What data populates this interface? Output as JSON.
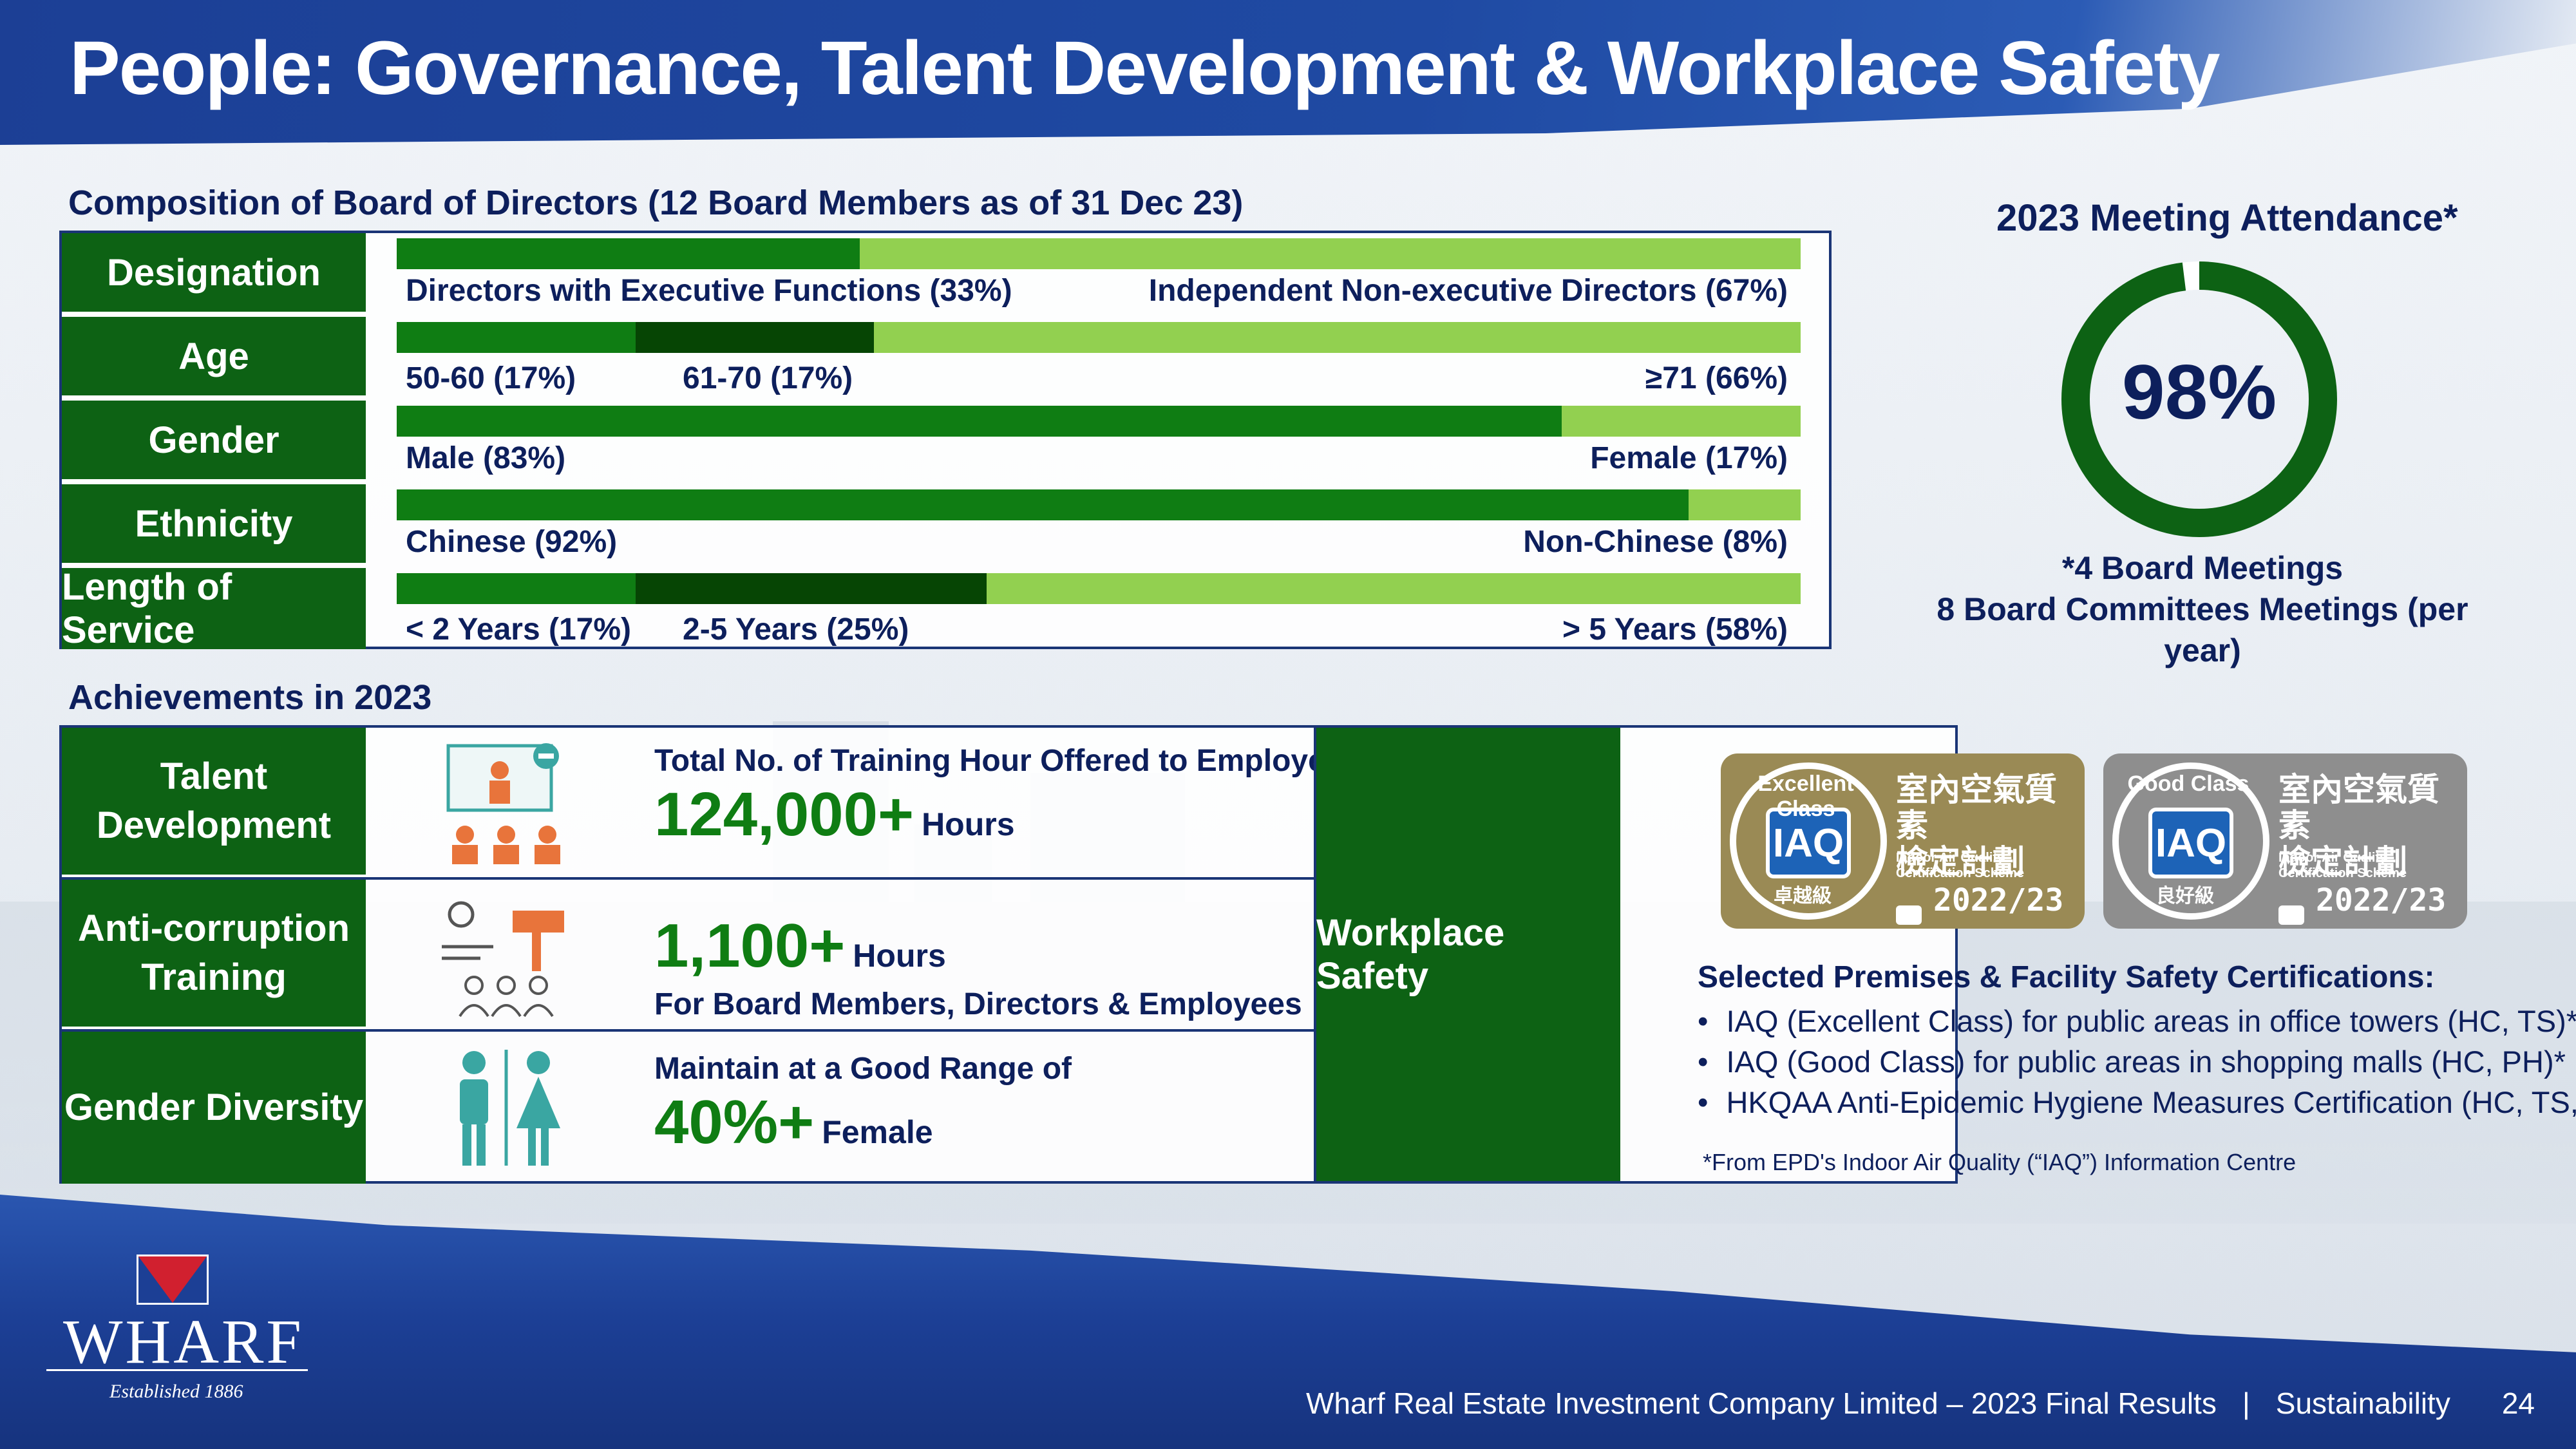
{
  "header": {
    "title": "People: Governance, Talent Development & Workplace Safety"
  },
  "board": {
    "title": "Composition of Board of Directors (12 Board Members as of 31 Dec 23)",
    "rows": [
      {
        "label": "Designation",
        "segments": [
          {
            "pct": 33,
            "label": "Directors with Executive Functions (33%)"
          },
          {
            "pct": 67,
            "label": "Independent Non-executive Directors (67%)"
          }
        ]
      },
      {
        "label": "Age",
        "segments": [
          {
            "pct": 17,
            "label": "50-60 (17%)"
          },
          {
            "pct": 17,
            "label": "61-70 (17%)"
          },
          {
            "pct": 66,
            "label": "≥71 (66%)"
          }
        ]
      },
      {
        "label": "Gender",
        "segments": [
          {
            "pct": 83,
            "label": "Male (83%)"
          },
          {
            "pct": 17,
            "label": "Female (17%)"
          }
        ]
      },
      {
        "label": "Ethnicity",
        "segments": [
          {
            "pct": 92,
            "label": "Chinese (92%)"
          },
          {
            "pct": 8,
            "label": "Non-Chinese (8%)"
          }
        ]
      },
      {
        "label": "Length of Service",
        "segments": [
          {
            "pct": 17,
            "label": "< 2 Years (17%)"
          },
          {
            "pct": 25,
            "label": "2-5 Years (25%)"
          },
          {
            "pct": 58,
            "label": "> 5 Years (58%)"
          }
        ]
      }
    ]
  },
  "attendance": {
    "title": "2023 Meeting Attendance*",
    "percent": "98%",
    "value": 98,
    "note_line1": "*4 Board Meetings",
    "note_line2": "8 Board Committees Meetings (per year)"
  },
  "achievements": {
    "title": "Achievements in 2023",
    "talent": {
      "label_line1": "Talent",
      "label_line2": "Development",
      "caption": "Total No. of Training Hour Offered to Employees:",
      "value": "124,000+",
      "unit": "Hours"
    },
    "anticorruption": {
      "label_line1": "Anti-corruption",
      "label_line2": "Training",
      "value": "1,100+",
      "unit": "Hours",
      "caption": "For Board Members, Directors & Employees"
    },
    "gender": {
      "label": "Gender Diversity",
      "caption": "Maintain at a Good Range of",
      "value": "40%+",
      "unit": "Female"
    },
    "workplace": {
      "label": "Workplace Safety",
      "badges": [
        {
          "class_text": "Excellent Class",
          "seal_text": "IAQ",
          "cn_line1": "室內空氣質素",
          "cn_line2": "檢定計劃",
          "en_line1": "Indoor Air Quality",
          "en_line2": "Certification Scheme",
          "year": "2022/23",
          "grade_cn": "卓越級"
        },
        {
          "class_text": "Good Class",
          "seal_text": "IAQ",
          "cn_line1": "室內空氣質素",
          "cn_line2": "檢定計劃",
          "en_line1": "Indoor Air Quality",
          "en_line2": "Certification Scheme",
          "year": "2022/23",
          "grade_cn": "良好級"
        }
      ],
      "cert_title": "Selected Premises & Facility Safety Certifications:",
      "certs": [
        "IAQ (Excellent Class) for public areas in office towers (HC, TS)*",
        "IAQ (Good Class) for public areas in shopping malls (HC, PH)*",
        "HKQAA Anti-Epidemic Hygiene Measures Certification (HC, TS, PH)"
      ],
      "footnote": "*From EPD's Indoor Air Quality (“IAQ”) Information Centre"
    }
  },
  "footer": {
    "logo_word": "WHARF",
    "logo_est": "Established 1886",
    "company": "Wharf Real Estate Investment Company Limited – 2023 Final Results",
    "separator": "|",
    "section": "Sustainability",
    "page": "24"
  },
  "colors": {
    "label_green": "#0d6214",
    "bar_mid": "#0f7d13",
    "bar_dark": "#064504",
    "bar_light": "#92d050",
    "navy": "#0d1f5c",
    "blue": "#1c3f95"
  }
}
